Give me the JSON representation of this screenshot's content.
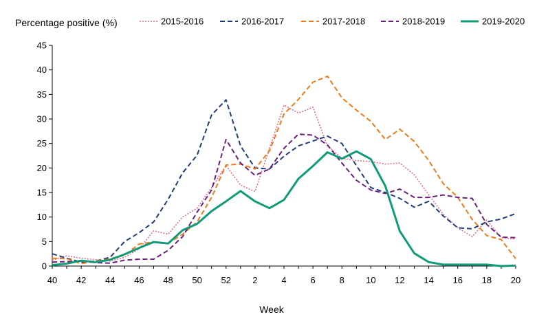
{
  "chart_data": {
    "type": "line",
    "ylabel": "Percentage positive (%)",
    "xlabel": "Week",
    "ylim": [
      0,
      45
    ],
    "yticks": [
      0,
      5,
      10,
      15,
      20,
      25,
      30,
      35,
      40,
      45
    ],
    "x_labels": [
      "40",
      "41",
      "42",
      "43",
      "44",
      "45",
      "46",
      "47",
      "48",
      "49",
      "50",
      "51",
      "52",
      "1",
      "2",
      "3",
      "4",
      "5",
      "6",
      "7",
      "8",
      "9",
      "10",
      "11",
      "12",
      "13",
      "14",
      "15",
      "16",
      "17",
      "18",
      "19",
      "20"
    ],
    "x_tick_labels": [
      "40",
      "42",
      "44",
      "46",
      "48",
      "50",
      "52",
      "2",
      "4",
      "6",
      "8",
      "10",
      "12",
      "14",
      "16",
      "18",
      "20"
    ],
    "grid": false,
    "legend_position": "top",
    "series": [
      {
        "name": "2015-2016",
        "color": "#e26d8c",
        "dash": "dotted",
        "values": [
          1.2,
          2.1,
          1.6,
          1.3,
          1.0,
          1.8,
          3.5,
          7.2,
          6.5,
          10.0,
          11.8,
          16.0,
          20.5,
          16.5,
          15.2,
          24.0,
          32.8,
          31.2,
          32.4,
          24.5,
          22.0,
          21.5,
          21.3,
          20.8,
          21.0,
          18.6,
          14.5,
          10.6,
          7.8,
          6.0,
          9.4,
          5.8,
          5.5
        ]
      },
      {
        "name": "2016-2017",
        "color": "#1f3b7a",
        "dash": "dashed",
        "values": [
          2.5,
          1.6,
          0.8,
          1.0,
          1.8,
          5.0,
          6.8,
          9.0,
          13.6,
          19.0,
          22.6,
          30.8,
          33.9,
          24.5,
          20.0,
          19.8,
          22.4,
          24.5,
          25.5,
          26.5,
          25.0,
          20.5,
          16.0,
          15.0,
          13.8,
          12.0,
          13.2,
          10.2,
          7.8,
          7.6,
          9.0,
          9.6,
          10.7
        ]
      },
      {
        "name": "2017-2018",
        "color": "#f07a1a",
        "dash": "dashed",
        "values": [
          1.6,
          1.5,
          0.5,
          1.0,
          1.5,
          2.2,
          4.5,
          4.9,
          4.6,
          6.5,
          9.0,
          14.0,
          20.6,
          20.8,
          19.8,
          23.5,
          31.0,
          34.0,
          37.5,
          38.7,
          34.3,
          31.8,
          29.5,
          25.8,
          27.9,
          25.4,
          21.5,
          16.8,
          14.0,
          9.5,
          6.2,
          5.4,
          1.5
        ]
      },
      {
        "name": "2018-2019",
        "color": "#6a1f7a",
        "dash": "dashed",
        "values": [
          0.8,
          0.9,
          1.0,
          0.7,
          0.6,
          1.2,
          1.4,
          1.4,
          3.2,
          6.0,
          11.0,
          15.5,
          25.8,
          21.0,
          18.5,
          19.8,
          24.0,
          26.9,
          26.7,
          24.7,
          21.0,
          17.5,
          15.5,
          14.8,
          15.7,
          14.0,
          14.0,
          14.5,
          14.0,
          13.8,
          8.5,
          5.9,
          5.8
        ]
      },
      {
        "name": "2019-2020",
        "color": "#0f9a78",
        "dash": "solid",
        "values": [
          0.2,
          0.5,
          1.1,
          0.8,
          1.3,
          2.4,
          3.7,
          4.9,
          4.6,
          7.3,
          8.6,
          11.2,
          13.2,
          15.3,
          13.2,
          11.8,
          13.5,
          17.8,
          20.4,
          23.2,
          21.9,
          23.4,
          21.8,
          16.3,
          7.1,
          2.6,
          0.8,
          0.3,
          0.3,
          0.3,
          0.3,
          0.0,
          0.1
        ]
      }
    ]
  }
}
